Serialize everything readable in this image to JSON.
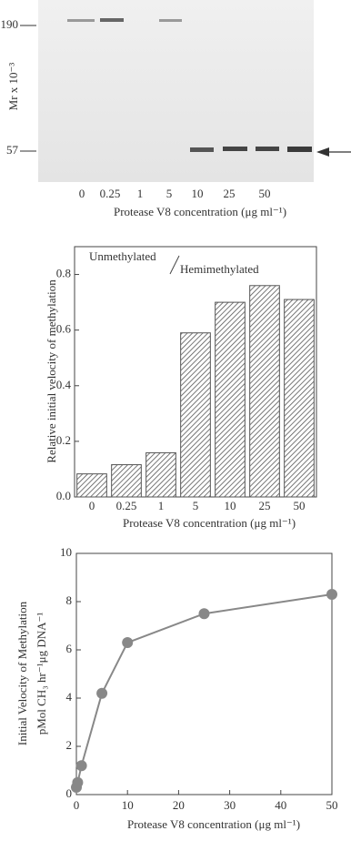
{
  "gel": {
    "ylabel": "Mr x 10⁻³",
    "markers": [
      "190",
      "57"
    ],
    "lanes": [
      "0",
      "0.25",
      "1",
      "5",
      "10",
      "25",
      "50"
    ],
    "xlabel": "Protease V8 concentration (μg ml⁻¹)"
  },
  "chart_data": [
    {
      "type": "bar",
      "annotations": [
        "Unmethylated",
        "Hemimethylated"
      ],
      "ylabel": "Relative initial velocity of methylation",
      "xlabel": "Protease V8 concentration (μg ml⁻¹)",
      "categories": [
        "0",
        "0.25",
        "1",
        "5",
        "10",
        "25",
        "50"
      ],
      "values": [
        0.083,
        0.116,
        0.159,
        0.59,
        0.7,
        0.76,
        0.71
      ],
      "color": "#555555",
      "ylim": [
        0,
        0.9
      ],
      "yticks": [
        {
          "value": 0,
          "label": "0.0"
        },
        0.2,
        0.4,
        0.6,
        0.8
      ]
    },
    {
      "type": "line",
      "ylabel": [
        "Initial Velocity of Methylation",
        "pMol CH₃ hr⁻¹μg DNA⁻¹"
      ],
      "xlabel": "Protease V8 concentration (μg ml⁻¹)",
      "x": [
        0,
        0.25,
        1,
        5,
        10,
        25,
        50
      ],
      "values": [
        0.3,
        0.5,
        1.2,
        4.2,
        6.3,
        7.5,
        8.3
      ],
      "color": "#888888",
      "xlim": [
        0,
        50
      ],
      "ylim": [
        0,
        10
      ],
      "xticks": [
        0,
        10,
        20,
        30,
        40,
        50
      ],
      "yticks": [
        0,
        2,
        4,
        6,
        8,
        10
      ]
    }
  ]
}
